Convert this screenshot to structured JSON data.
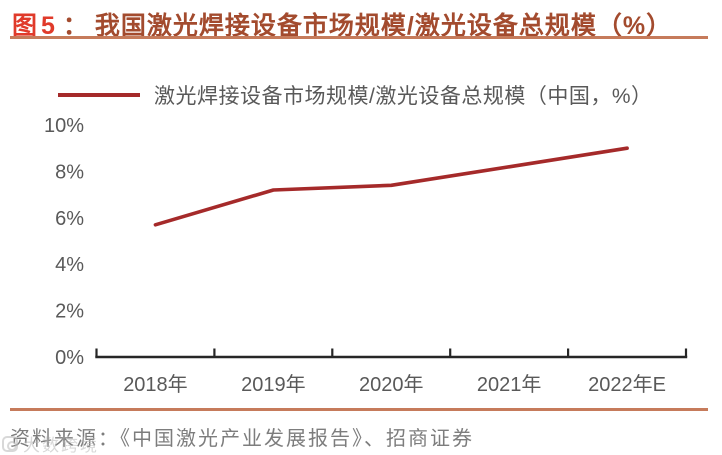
{
  "figure": {
    "label": "图5",
    "colon": "：",
    "title": "我国激光焊接设备市场规模/激光设备总规模（%）"
  },
  "legend": {
    "label": "激光焊接设备市场规模/激光设备总规模（中国，%）"
  },
  "chart_data": {
    "type": "line",
    "title": "我国激光焊接设备市场规模/激光设备总规模（%）",
    "categories": [
      "2018年",
      "2019年",
      "2020年",
      "2021年",
      "2022年E"
    ],
    "series": [
      {
        "name": "激光焊接设备市场规模/激光设备总规模（中国，%）",
        "values": [
          5.7,
          7.2,
          7.4,
          8.2,
          9.0
        ]
      }
    ],
    "xlabel": "",
    "ylabel": "",
    "ylim": [
      0,
      10
    ],
    "y_tick_labels": [
      "0%",
      "2%",
      "4%",
      "6%",
      "8%",
      "10%"
    ],
    "grid": false,
    "legend_position": "top-left"
  },
  "source": {
    "text": "资料来源：《中国激光产业发展报告》、招商证券"
  },
  "watermark": {
    "text": "大数跨境"
  },
  "colors": {
    "figure_label": "#e03a2a",
    "figure_title": "#a34b2e",
    "rule": "#c67b5b",
    "series_line": "#a52a2a",
    "axis_line": "#262626",
    "tick_label": "#595959",
    "legend_text": "#595959",
    "source_text": "#7d7d7d"
  }
}
